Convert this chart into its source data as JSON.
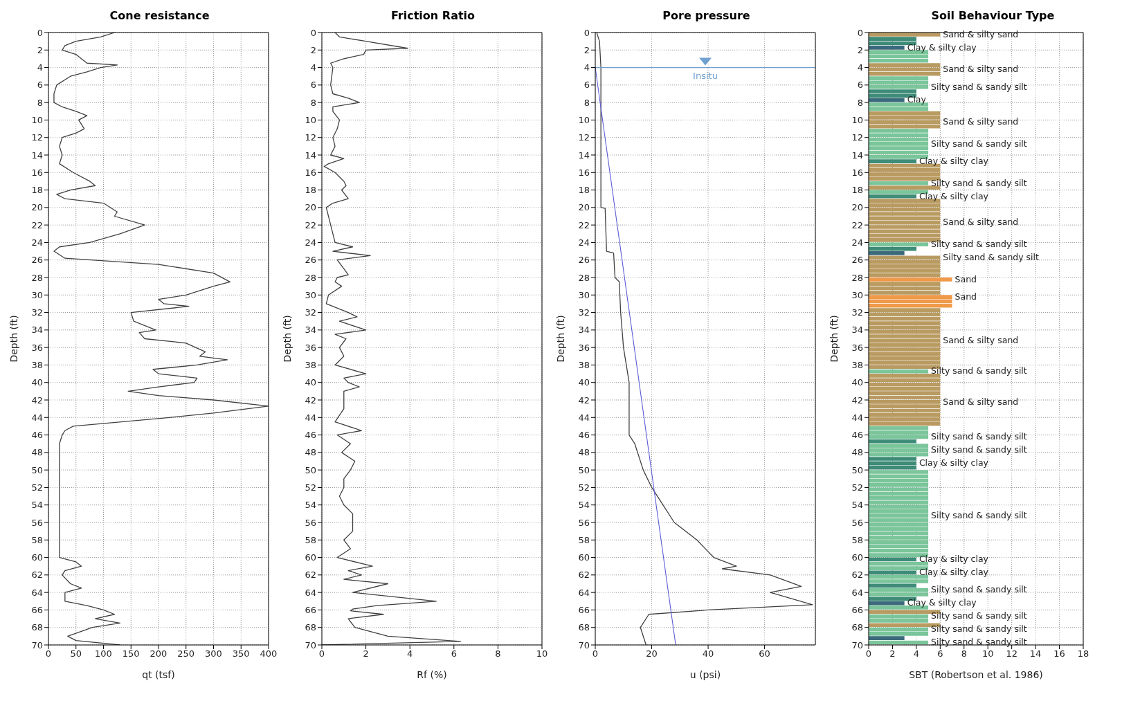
{
  "chart_data": [
    {
      "type": "line",
      "title": "Cone resistance",
      "xlabel": "qt (tsf)",
      "ylabel": "Depth (ft)",
      "xlim": [
        0,
        400
      ],
      "xticks": [
        0,
        50,
        100,
        150,
        200,
        250,
        300,
        350,
        400
      ],
      "ylim": [
        70,
        0
      ],
      "yticks": [
        0,
        2,
        4,
        6,
        8,
        10,
        12,
        14,
        16,
        18,
        20,
        22,
        24,
        26,
        28,
        30,
        32,
        34,
        36,
        38,
        40,
        42,
        44,
        46,
        48,
        50,
        52,
        54,
        56,
        58,
        60,
        62,
        64,
        66,
        68,
        70
      ],
      "grid": true,
      "series": [
        {
          "color": "#404040",
          "x": [
            120,
            95,
            50,
            30,
            25,
            50,
            60,
            70,
            125,
            95,
            70,
            40,
            15,
            10,
            10,
            25,
            50,
            70,
            55,
            65,
            50,
            25,
            20,
            25,
            20,
            45,
            75,
            85,
            40,
            15,
            30,
            100,
            125,
            120,
            175,
            130,
            75,
            20,
            10,
            30,
            200,
            300,
            330,
            300,
            250,
            200,
            210,
            255,
            150,
            155,
            195,
            165,
            175,
            250,
            285,
            275,
            325,
            270,
            190,
            200,
            270,
            265,
            200,
            145,
            200,
            300,
            400,
            300,
            220,
            45,
            30,
            25,
            20,
            20,
            20,
            50,
            60,
            30,
            25,
            40,
            60,
            30,
            30,
            70,
            100,
            120,
            85,
            130,
            80,
            35,
            50,
            130
          ],
          "values": [
            0,
            0.5,
            1,
            1.5,
            2,
            2.5,
            3,
            3.5,
            3.7,
            4,
            4.5,
            5,
            6,
            7,
            8,
            8.5,
            9,
            9.5,
            10,
            11,
            11.5,
            12,
            13,
            14,
            15,
            16,
            17,
            17.5,
            18,
            18.5,
            19,
            19.5,
            20.5,
            21,
            22,
            23,
            24,
            24.5,
            25,
            25.8,
            26.5,
            27.5,
            28.5,
            29,
            30,
            30.5,
            31,
            31.3,
            32,
            33,
            34,
            34.3,
            35,
            35.5,
            36.5,
            37,
            37.4,
            38,
            38.5,
            39,
            39.5,
            40,
            40.5,
            41,
            41.5,
            42,
            42.7,
            43.5,
            44,
            45,
            45.5,
            46,
            47,
            50,
            60,
            60.5,
            61,
            61.5,
            62,
            63,
            63.5,
            64,
            65,
            65.5,
            66,
            66.5,
            67,
            67.5,
            68,
            69,
            69.5,
            70
          ]
        }
      ]
    },
    {
      "type": "line",
      "title": "Friction Ratio",
      "xlabel": "Rf (%)",
      "ylabel": "Depth (ft)",
      "xlim": [
        0,
        10
      ],
      "xticks": [
        0,
        2,
        4,
        6,
        8,
        10
      ],
      "ylim": [
        70,
        0
      ],
      "yticks": [
        0,
        2,
        4,
        6,
        8,
        10,
        12,
        14,
        16,
        18,
        20,
        22,
        24,
        26,
        28,
        30,
        32,
        34,
        36,
        38,
        40,
        42,
        44,
        46,
        48,
        50,
        52,
        54,
        56,
        58,
        60,
        62,
        64,
        66,
        68,
        70
      ],
      "grid": true,
      "series": [
        {
          "color": "#404040",
          "x": [
            0.6,
            0.8,
            2,
            3.9,
            2,
            1.9,
            1,
            0.4,
            0.5,
            0.4,
            0.5,
            1.2,
            1.7,
            0.5,
            0.5,
            0.8,
            0.7,
            0.5,
            0.6,
            0.4,
            1.0,
            0.3,
            0.1,
            0.6,
            1.0,
            1.1,
            0.9,
            1.2,
            0.5,
            0.2,
            0.4,
            0.6,
            1.4,
            0.5,
            2.2,
            0.7,
            1.0,
            1.2,
            0.7,
            0.6,
            0.9,
            0.3,
            0.2,
            1.2,
            1.6,
            0.8,
            2.0,
            0.6,
            1.1,
            0.8,
            1.0,
            0.6,
            2.0,
            1.0,
            1.2,
            1.7,
            1.0,
            1.0,
            0.6,
            1.8,
            0.7,
            1.3,
            0.9,
            1.5,
            1.3,
            1.0,
            1.0,
            0.8,
            1.0,
            1.4,
            1.4,
            1.0,
            1.3,
            0.7,
            2.3,
            1.2,
            1.8,
            1.0,
            3.0,
            1.4,
            5.2,
            2.5,
            1.4,
            1.3,
            2.8,
            1.2,
            1.5,
            3.0,
            6.3,
            0
          ],
          "values": [
            0,
            0.5,
            1,
            1.8,
            2,
            2.5,
            3,
            3.5,
            4,
            6,
            7,
            7.5,
            8,
            8.5,
            9,
            10,
            11,
            12,
            13,
            14,
            14.4,
            15,
            15.3,
            16,
            17,
            17.5,
            18,
            19,
            19.5,
            20,
            22,
            24,
            24.5,
            25,
            25.5,
            26,
            27,
            27.7,
            28,
            28.5,
            29,
            30,
            31,
            32,
            32.5,
            33,
            34,
            34.5,
            35,
            36,
            37,
            38,
            39,
            39.5,
            40,
            40.5,
            41,
            43,
            44.5,
            45.5,
            46,
            47,
            48,
            49,
            50,
            51,
            52,
            53,
            54,
            55,
            57,
            58,
            59,
            60,
            61,
            61.5,
            62,
            62.5,
            63,
            64,
            65,
            65.5,
            65.9,
            66.1,
            66.5,
            67,
            68,
            69,
            69.6,
            70
          ]
        }
      ]
    },
    {
      "type": "line",
      "title": "Pore pressure",
      "xlabel": "u (psi)",
      "ylabel": "Depth (ft)",
      "xlim": [
        0,
        78
      ],
      "xticks": [
        0,
        20,
        40,
        60
      ],
      "ylim": [
        70,
        0
      ],
      "yticks": [
        0,
        2,
        4,
        6,
        8,
        10,
        12,
        14,
        16,
        18,
        20,
        22,
        24,
        26,
        28,
        30,
        32,
        34,
        36,
        38,
        40,
        42,
        44,
        46,
        48,
        50,
        52,
        54,
        56,
        58,
        60,
        62,
        64,
        66,
        68,
        70
      ],
      "grid": true,
      "series": [
        {
          "color": "#404040",
          "x": [
            0.5,
            1.5,
            2,
            2,
            3.5,
            4,
            6.5,
            7,
            8.5,
            9,
            10,
            12,
            12,
            14,
            17,
            20,
            24,
            28,
            36,
            42,
            50,
            45,
            62,
            73,
            62,
            77,
            40,
            19,
            16,
            18
          ],
          "values": [
            0,
            1,
            4,
            20,
            20.1,
            25,
            25.2,
            28,
            28.5,
            32,
            36,
            40,
            46,
            47,
            50,
            52,
            54,
            56,
            58,
            60,
            61,
            61.3,
            62,
            63.3,
            64,
            65.4,
            66,
            66.5,
            68,
            70
          ]
        },
        {
          "color": "#5b5bd6",
          "x": [
            0,
            28.5
          ],
          "values": [
            4,
            70
          ]
        }
      ],
      "ref_lines": [
        {
          "axis": "y",
          "value": 4,
          "label": "Insitu",
          "color": "#6fa0d0"
        }
      ]
    },
    {
      "type": "bar",
      "orientation": "horizontal",
      "title": "Soil Behaviour Type",
      "xlabel": "SBT (Robertson et al. 1986)",
      "ylabel": "Depth (ft)",
      "xlim": [
        0,
        18
      ],
      "xticks": [
        0,
        2,
        4,
        6,
        8,
        10,
        12,
        14,
        16,
        18
      ],
      "ylim": [
        70,
        0
      ],
      "yticks": [
        0,
        2,
        4,
        6,
        8,
        10,
        12,
        14,
        16,
        18,
        20,
        22,
        24,
        26,
        28,
        30,
        32,
        34,
        36,
        38,
        40,
        42,
        44,
        46,
        48,
        50,
        52,
        54,
        56,
        58,
        60,
        62,
        64,
        66,
        68,
        70
      ],
      "grid": true,
      "series": [
        {
          "color": "#b99b62",
          "x": [
            0.25,
            3.75,
            4.25,
            4.75,
            9.25,
            9.75,
            10.25,
            10.75,
            15.25,
            15.75,
            16.25,
            16.75,
            17.75,
            19.25,
            19.75,
            20.25,
            20.75,
            21.25,
            21.75,
            22.25,
            22.75,
            23.25,
            23.75,
            25.75,
            26.25,
            26.75,
            27.25,
            27.75,
            28.75,
            29.25,
            29.75,
            31.75,
            32.25,
            32.75,
            33.25,
            33.75,
            34.25,
            34.75,
            35.25,
            35.75,
            36.25,
            36.75,
            37.25,
            37.75,
            38.25,
            39.25,
            39.75,
            40.25,
            40.75,
            41.25,
            41.75,
            42.25,
            42.75,
            43.25,
            43.75,
            44.25,
            44.75,
            66.25,
            67.75
          ],
          "values": [
            6,
            6,
            6,
            6,
            6,
            6,
            6,
            6,
            6,
            6,
            6,
            6,
            6,
            6,
            6,
            6,
            6,
            6,
            6,
            6,
            6,
            6,
            6,
            6,
            6,
            6,
            6,
            6,
            6,
            6,
            6,
            6,
            6,
            6,
            6,
            6,
            6,
            6,
            6,
            6,
            6,
            6,
            6,
            6,
            6,
            6,
            6,
            6,
            6,
            6,
            6,
            6,
            6,
            6,
            6,
            6,
            6,
            6,
            6
          ],
          "value_labels": [
            "Sand & silty sand",
            null,
            "Sand & silty sand",
            null,
            null,
            null,
            "Sand & silty sand",
            null,
            null,
            null,
            null,
            null,
            null,
            null,
            null,
            null,
            null,
            null,
            "Sand & silty sand",
            null,
            null,
            null,
            null,
            "Silty sand & sandy silt",
            null,
            null,
            null,
            null,
            null,
            null,
            null,
            null,
            null,
            null,
            null,
            null,
            null,
            null,
            "Sand & silty sand",
            null,
            null,
            null,
            null,
            null,
            null,
            null,
            null,
            null,
            null,
            null,
            null,
            "Sand & silty sand",
            null,
            null,
            null,
            null,
            null,
            null,
            null
          ]
        },
        {
          "color": "#7bc59b",
          "x": [
            2.25,
            2.75,
            3.25,
            5.25,
            5.75,
            6.25,
            8.25,
            8.75,
            11.25,
            11.75,
            12.25,
            12.75,
            13.25,
            13.75,
            14.25,
            17.25,
            18.25,
            24.25,
            38.75,
            45.25,
            45.75,
            46.25,
            47.25,
            47.75,
            48.25,
            50.25,
            50.75,
            51.25,
            51.75,
            52.25,
            52.75,
            53.25,
            53.75,
            54.25,
            54.75,
            55.25,
            55.75,
            56.25,
            56.75,
            57.25,
            57.75,
            58.25,
            58.75,
            59.25,
            59.75,
            60.75,
            61.25,
            62.25,
            62.75,
            63.75,
            64.25,
            65.75,
            66.75,
            67.25,
            68.25,
            68.75,
            69.75
          ],
          "values": [
            5,
            5,
            5,
            5,
            5,
            5,
            5,
            5,
            5,
            5,
            5,
            5,
            5,
            5,
            5,
            5,
            5,
            5,
            5,
            5,
            5,
            5,
            5,
            5,
            5,
            5,
            5,
            5,
            5,
            5,
            5,
            5,
            5,
            5,
            5,
            5,
            5,
            5,
            5,
            5,
            5,
            5,
            5,
            5,
            5,
            5,
            5,
            5,
            5,
            5,
            5,
            5,
            5,
            5,
            5,
            5,
            5
          ],
          "value_labels": [
            null,
            null,
            null,
            null,
            null,
            "Silty sand & sandy silt",
            null,
            null,
            null,
            null,
            null,
            "Silty sand & sandy silt",
            null,
            null,
            null,
            "Silty sand & sandy silt",
            null,
            "Silty sand & sandy silt",
            "Silty sand & sandy silt",
            null,
            null,
            "Silty sand & sandy silt",
            null,
            "Silty sand & sandy silt",
            null,
            null,
            null,
            null,
            null,
            null,
            null,
            null,
            null,
            null,
            null,
            "Silty sand & sandy silt",
            null,
            null,
            null,
            null,
            null,
            null,
            null,
            null,
            null,
            null,
            null,
            null,
            null,
            "Silty sand & sandy silt",
            null,
            null,
            "Silty sand & sandy silt",
            null,
            "Silty sand & sandy silt",
            null,
            "Silty sand & sandy silt"
          ]
        },
        {
          "color": "#3e8c78",
          "x": [
            0.75,
            1.25,
            6.75,
            7.25,
            14.75,
            18.75,
            24.75,
            46.75,
            48.75,
            49.25,
            49.75,
            60.25,
            61.75,
            63.25,
            64.75
          ],
          "values": [
            4,
            4,
            4,
            4,
            4,
            4,
            4,
            4,
            4,
            4,
            4,
            4,
            4,
            4,
            4
          ],
          "value_labels": [
            null,
            null,
            null,
            null,
            "Clay & silty clay",
            "Clay & silty clay",
            null,
            null,
            null,
            "Clay & silty clay",
            null,
            "Clay & silty clay",
            "Clay & silty clay",
            null,
            null
          ]
        },
        {
          "color": "#3b6a7c",
          "x": [
            1.75,
            7.75,
            25.25,
            65.25,
            69.25
          ],
          "values": [
            3,
            3,
            3,
            3,
            3
          ],
          "value_labels": [
            "Clay & silty clay",
            "Clay",
            null,
            "Clay & silty clay",
            null
          ]
        },
        {
          "color": "#ef9a4a",
          "x": [
            28.25,
            30.25,
            30.75,
            31.25
          ],
          "values": [
            7,
            7,
            7,
            7
          ],
          "value_labels": [
            "Sand",
            "Sand",
            null,
            null
          ]
        }
      ]
    }
  ]
}
